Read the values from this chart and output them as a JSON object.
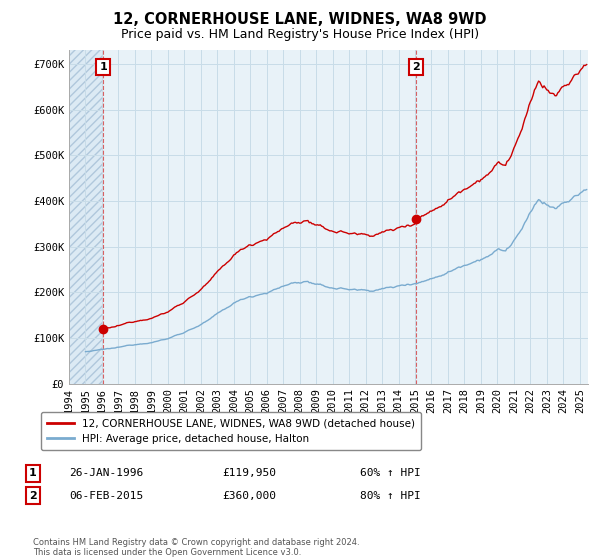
{
  "title": "12, CORNERHOUSE LANE, WIDNES, WA8 9WD",
  "subtitle": "Price paid vs. HM Land Registry's House Price Index (HPI)",
  "xlim_start": 1994.0,
  "xlim_end": 2025.5,
  "ylim": [
    0,
    730000
  ],
  "yticks": [
    0,
    100000,
    200000,
    300000,
    400000,
    500000,
    600000,
    700000
  ],
  "ytick_labels": [
    "£0",
    "£100K",
    "£200K",
    "£300K",
    "£400K",
    "£500K",
    "£600K",
    "£700K"
  ],
  "transaction1_date": 1996.08,
  "transaction1_price": 119950,
  "transaction2_date": 2015.08,
  "transaction2_price": 360000,
  "red_line_color": "#cc0000",
  "blue_line_color": "#7aabcf",
  "grid_color": "#c8dce8",
  "background_color": "#ffffff",
  "plot_bg_color": "#e8f2f8",
  "hatch_bg_color": "#dceaf4",
  "legend_label_red": "12, CORNERHOUSE LANE, WIDNES, WA8 9WD (detached house)",
  "legend_label_blue": "HPI: Average price, detached house, Halton",
  "annotation1_date": "26-JAN-1996",
  "annotation1_price": "£119,950",
  "annotation1_hpi": "60% ↑ HPI",
  "annotation2_date": "06-FEB-2015",
  "annotation2_price": "£360,000",
  "annotation2_hpi": "80% ↑ HPI",
  "footer": "Contains HM Land Registry data © Crown copyright and database right 2024.\nThis data is licensed under the Open Government Licence v3.0.",
  "title_fontsize": 10.5,
  "subtitle_fontsize": 9,
  "tick_fontsize": 7.5
}
